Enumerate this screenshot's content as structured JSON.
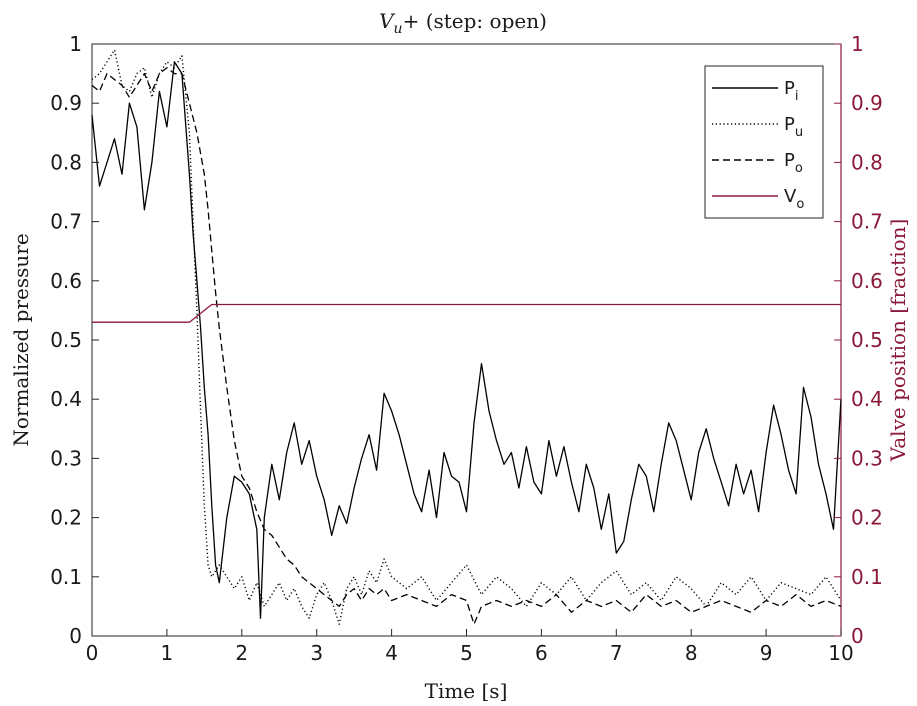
{
  "chart_data": {
    "type": "line",
    "title": "V_u+ (step: open)",
    "title_main": "V",
    "title_sub": "u",
    "title_rest": "+ (step: open)",
    "xlabel": "Time [s]",
    "ylabel": "Normalized pressure",
    "ylabel_right": "Valve position [fraction]",
    "xlim": [
      0,
      10
    ],
    "ylim": [
      0,
      1
    ],
    "ylim_right": [
      0,
      1
    ],
    "xticks": [
      "0",
      "1",
      "2",
      "3",
      "4",
      "5",
      "6",
      "7",
      "8",
      "9",
      "10"
    ],
    "yticks": [
      "0",
      "0.1",
      "0.2",
      "0.3",
      "0.4",
      "0.5",
      "0.6",
      "0.7",
      "0.8",
      "0.9",
      "1"
    ],
    "yticks_right": [
      "0",
      "0.1",
      "0.2",
      "0.3",
      "0.4",
      "0.5",
      "0.6",
      "0.7",
      "0.8",
      "0.9",
      "1"
    ],
    "grid": false,
    "legend_position": "top-right",
    "right_axis_color": "#8b1a3a",
    "series": [
      {
        "name": "P_i",
        "label_main": "P",
        "label_sub": "i",
        "axis": "left",
        "style": "solid",
        "color": "#000000",
        "x": [
          0,
          0.1,
          0.2,
          0.3,
          0.4,
          0.5,
          0.6,
          0.7,
          0.8,
          0.9,
          1.0,
          1.1,
          1.2,
          1.3,
          1.35,
          1.4,
          1.45,
          1.5,
          1.55,
          1.6,
          1.65,
          1.7,
          1.8,
          1.9,
          2.0,
          2.1,
          2.2,
          2.25,
          2.3,
          2.4,
          2.5,
          2.6,
          2.7,
          2.8,
          2.9,
          3.0,
          3.1,
          3.2,
          3.3,
          3.4,
          3.5,
          3.6,
          3.7,
          3.8,
          3.9,
          4.0,
          4.1,
          4.2,
          4.3,
          4.4,
          4.5,
          4.6,
          4.7,
          4.8,
          4.9,
          5.0,
          5.1,
          5.2,
          5.3,
          5.4,
          5.5,
          5.6,
          5.7,
          5.8,
          5.9,
          6.0,
          6.1,
          6.2,
          6.3,
          6.4,
          6.5,
          6.6,
          6.7,
          6.8,
          6.9,
          7.0,
          7.1,
          7.2,
          7.3,
          7.4,
          7.5,
          7.6,
          7.7,
          7.8,
          7.9,
          8.0,
          8.1,
          8.2,
          8.3,
          8.4,
          8.5,
          8.6,
          8.7,
          8.8,
          8.9,
          9.0,
          9.1,
          9.2,
          9.3,
          9.4,
          9.5,
          9.6,
          9.7,
          9.8,
          9.9,
          10.0
        ],
        "y": [
          0.88,
          0.76,
          0.8,
          0.84,
          0.78,
          0.9,
          0.86,
          0.72,
          0.8,
          0.92,
          0.86,
          0.97,
          0.95,
          0.78,
          0.68,
          0.6,
          0.52,
          0.42,
          0.34,
          0.22,
          0.12,
          0.09,
          0.2,
          0.27,
          0.26,
          0.24,
          0.18,
          0.03,
          0.2,
          0.29,
          0.23,
          0.31,
          0.36,
          0.29,
          0.33,
          0.27,
          0.23,
          0.17,
          0.22,
          0.19,
          0.25,
          0.3,
          0.34,
          0.28,
          0.41,
          0.38,
          0.34,
          0.29,
          0.24,
          0.21,
          0.28,
          0.2,
          0.31,
          0.27,
          0.26,
          0.21,
          0.36,
          0.46,
          0.38,
          0.33,
          0.29,
          0.31,
          0.25,
          0.32,
          0.26,
          0.24,
          0.33,
          0.27,
          0.32,
          0.26,
          0.21,
          0.29,
          0.25,
          0.18,
          0.24,
          0.14,
          0.16,
          0.23,
          0.29,
          0.27,
          0.21,
          0.29,
          0.36,
          0.33,
          0.28,
          0.23,
          0.31,
          0.35,
          0.3,
          0.26,
          0.22,
          0.29,
          0.24,
          0.28,
          0.21,
          0.31,
          0.39,
          0.34,
          0.28,
          0.24,
          0.42,
          0.37,
          0.29,
          0.24,
          0.18,
          0.4
        ]
      },
      {
        "name": "P_u",
        "label_main": "P",
        "label_sub": "u",
        "axis": "left",
        "style": "dotted",
        "color": "#000000",
        "x": [
          0,
          0.1,
          0.2,
          0.3,
          0.4,
          0.5,
          0.6,
          0.7,
          0.8,
          0.9,
          1.0,
          1.1,
          1.2,
          1.3,
          1.35,
          1.4,
          1.45,
          1.5,
          1.55,
          1.6,
          1.7,
          1.8,
          1.9,
          2.0,
          2.1,
          2.2,
          2.3,
          2.4,
          2.5,
          2.6,
          2.7,
          2.8,
          2.9,
          3.0,
          3.1,
          3.2,
          3.3,
          3.4,
          3.5,
          3.6,
          3.7,
          3.8,
          3.9,
          4.0,
          4.2,
          4.4,
          4.6,
          4.8,
          5.0,
          5.2,
          5.4,
          5.6,
          5.8,
          6.0,
          6.2,
          6.4,
          6.6,
          6.8,
          7.0,
          7.2,
          7.4,
          7.6,
          7.8,
          8.0,
          8.2,
          8.4,
          8.6,
          8.8,
          9.0,
          9.2,
          9.4,
          9.6,
          9.8,
          10.0
        ],
        "y": [
          0.94,
          0.95,
          0.97,
          0.99,
          0.93,
          0.92,
          0.95,
          0.96,
          0.91,
          0.95,
          0.97,
          0.96,
          0.98,
          0.85,
          0.7,
          0.55,
          0.38,
          0.22,
          0.12,
          0.1,
          0.12,
          0.1,
          0.08,
          0.1,
          0.06,
          0.09,
          0.05,
          0.07,
          0.09,
          0.06,
          0.08,
          0.05,
          0.03,
          0.07,
          0.09,
          0.06,
          0.02,
          0.08,
          0.1,
          0.07,
          0.11,
          0.09,
          0.13,
          0.1,
          0.08,
          0.1,
          0.06,
          0.09,
          0.12,
          0.07,
          0.1,
          0.08,
          0.05,
          0.09,
          0.07,
          0.1,
          0.06,
          0.09,
          0.11,
          0.07,
          0.09,
          0.06,
          0.1,
          0.08,
          0.05,
          0.09,
          0.07,
          0.1,
          0.06,
          0.09,
          0.08,
          0.07,
          0.1,
          0.06
        ]
      },
      {
        "name": "P_o",
        "label_main": "P",
        "label_sub": "o",
        "axis": "left",
        "style": "dashed",
        "color": "#000000",
        "x": [
          0,
          0.1,
          0.2,
          0.3,
          0.4,
          0.5,
          0.6,
          0.7,
          0.8,
          0.9,
          1.0,
          1.1,
          1.2,
          1.3,
          1.4,
          1.5,
          1.55,
          1.6,
          1.65,
          1.7,
          1.8,
          1.9,
          2.0,
          2.1,
          2.2,
          2.3,
          2.4,
          2.5,
          2.6,
          2.7,
          2.8,
          2.9,
          3.0,
          3.1,
          3.2,
          3.3,
          3.4,
          3.5,
          3.6,
          3.7,
          3.8,
          3.9,
          4.0,
          4.2,
          4.4,
          4.6,
          4.8,
          5.0,
          5.1,
          5.2,
          5.4,
          5.6,
          5.8,
          6.0,
          6.2,
          6.4,
          6.6,
          6.8,
          7.0,
          7.2,
          7.4,
          7.6,
          7.8,
          8.0,
          8.2,
          8.4,
          8.6,
          8.8,
          9.0,
          9.2,
          9.4,
          9.6,
          9.8,
          10.0
        ],
        "y": [
          0.93,
          0.92,
          0.95,
          0.94,
          0.93,
          0.91,
          0.93,
          0.95,
          0.92,
          0.95,
          0.96,
          0.95,
          0.95,
          0.9,
          0.85,
          0.78,
          0.72,
          0.65,
          0.58,
          0.52,
          0.42,
          0.33,
          0.27,
          0.25,
          0.21,
          0.18,
          0.17,
          0.15,
          0.13,
          0.12,
          0.1,
          0.09,
          0.08,
          0.07,
          0.06,
          0.05,
          0.07,
          0.08,
          0.06,
          0.08,
          0.07,
          0.08,
          0.06,
          0.07,
          0.06,
          0.05,
          0.07,
          0.06,
          0.02,
          0.05,
          0.06,
          0.05,
          0.06,
          0.05,
          0.07,
          0.04,
          0.06,
          0.05,
          0.06,
          0.04,
          0.07,
          0.05,
          0.06,
          0.04,
          0.05,
          0.06,
          0.05,
          0.04,
          0.06,
          0.05,
          0.07,
          0.05,
          0.06,
          0.05
        ]
      },
      {
        "name": "V_o",
        "label_main": "V",
        "label_sub": "o",
        "axis": "right",
        "style": "solid",
        "color": "#8b1a3a",
        "x": [
          0,
          1.3,
          1.4,
          1.5,
          1.6,
          10.0
        ],
        "y": [
          0.53,
          0.53,
          0.54,
          0.55,
          0.56,
          0.56
        ]
      }
    ]
  }
}
